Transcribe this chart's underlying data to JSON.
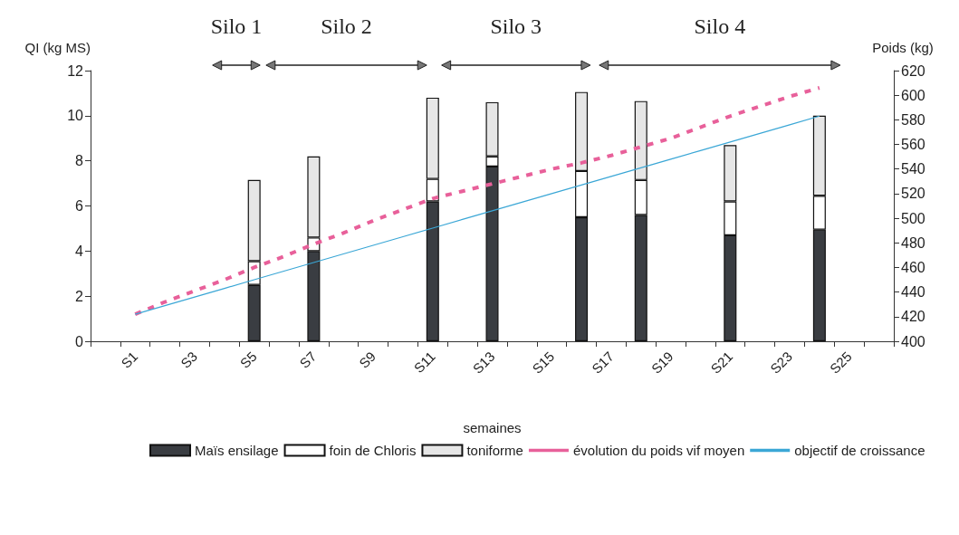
{
  "chart_data": {
    "type": "bar",
    "stacked": true,
    "xlabel": "semaines",
    "ylabel": "QI (kg MS)",
    "y2label": "Poids (kg)",
    "categories": [
      null,
      "S1",
      null,
      "S3",
      null,
      "S5",
      null,
      "S7",
      null,
      "S9",
      null,
      "S11",
      null,
      "S13",
      null,
      "S15",
      null,
      "S17",
      null,
      "S19",
      null,
      "S21",
      null,
      "S23",
      null,
      "S25",
      null
    ],
    "ylim": [
      0,
      12
    ],
    "yticks": [
      0,
      2,
      4,
      6,
      8,
      10,
      12
    ],
    "y2lim": [
      400,
      620
    ],
    "y2ticks": [
      400,
      420,
      440,
      460,
      480,
      500,
      520,
      540,
      560,
      580,
      600,
      620
    ],
    "grid": false,
    "legend": "bottom",
    "marker": "none",
    "annotations": [
      "Silo 1",
      "Silo 2",
      "Silo 3",
      "Silo 4"
    ],
    "series": [
      {
        "name": "Maïs ensilage",
        "color": "#3a3d42",
        "values": [
          null,
          null,
          null,
          null,
          null,
          2.5,
          null,
          4.0,
          null,
          null,
          null,
          6.2,
          null,
          7.75,
          null,
          null,
          5.5,
          null,
          5.6,
          null,
          null,
          4.7,
          null,
          null,
          4.95,
          null,
          null
        ]
      },
      {
        "name": "foin de Chloris",
        "color": "#ffffff",
        "values": [
          null,
          null,
          null,
          null,
          null,
          1.05,
          null,
          0.6,
          null,
          null,
          null,
          1.0,
          null,
          0.45,
          null,
          null,
          2.05,
          null,
          1.55,
          null,
          null,
          1.5,
          null,
          null,
          1.5,
          null,
          null
        ]
      },
      {
        "name": "toniforme",
        "color": "#e6e6e6",
        "values": [
          null,
          null,
          null,
          null,
          null,
          3.6,
          null,
          3.6,
          null,
          null,
          null,
          3.6,
          null,
          2.4,
          null,
          null,
          3.5,
          null,
          3.5,
          null,
          null,
          2.5,
          null,
          null,
          3.55,
          null,
          null
        ]
      },
      {
        "name": "évolution du poids vif moyen",
        "type": "line",
        "axis": "y2",
        "line_style": "dashed",
        "color": "#e8609a",
        "values": [
          null,
          422,
          432,
          441,
          450,
          460,
          469,
          479,
          488,
          498,
          507,
          516,
          522,
          528,
          534,
          540,
          545,
          551,
          558,
          565,
          574,
          583,
          591,
          599,
          606,
          null,
          null
        ]
      },
      {
        "name": "objectif de croissance",
        "type": "line",
        "axis": "y2",
        "line_style": "solid",
        "color": "#3ba7d6",
        "values": [
          null,
          422,
          429,
          436,
          443,
          450,
          457,
          464,
          471,
          478,
          485,
          492,
          499,
          506,
          513,
          520,
          527,
          534,
          541,
          548,
          555,
          562,
          569,
          576,
          583,
          null,
          null
        ]
      }
    ]
  }
}
